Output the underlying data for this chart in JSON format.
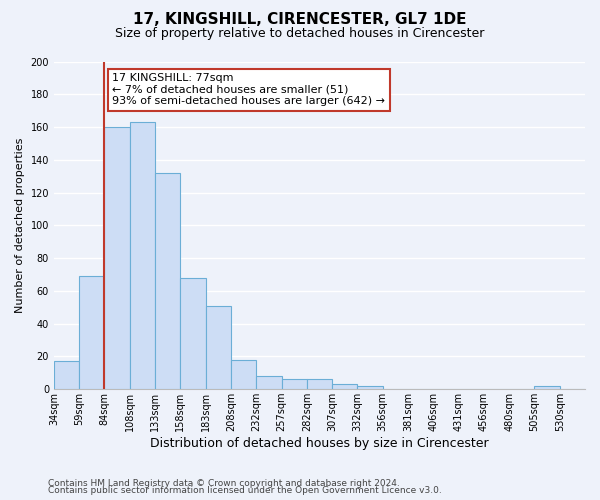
{
  "title": "17, KINGSHILL, CIRENCESTER, GL7 1DE",
  "subtitle": "Size of property relative to detached houses in Cirencester",
  "xlabel": "Distribution of detached houses by size in Cirencester",
  "ylabel": "Number of detached properties",
  "bar_values": [
    17,
    69,
    160,
    163,
    132,
    68,
    51,
    18,
    8,
    6,
    6,
    3,
    2,
    0,
    0,
    0,
    0,
    0,
    0,
    2,
    0
  ],
  "bin_edges": [
    34,
    59,
    84,
    108,
    133,
    158,
    183,
    208,
    232,
    257,
    282,
    307,
    332,
    356,
    381,
    406,
    431,
    456,
    480,
    505,
    530
  ],
  "xtick_labels": [
    "34sqm",
    "59sqm",
    "84sqm",
    "108sqm",
    "133sqm",
    "158sqm",
    "183sqm",
    "208sqm",
    "232sqm",
    "257sqm",
    "282sqm",
    "307sqm",
    "332sqm",
    "356sqm",
    "381sqm",
    "406sqm",
    "431sqm",
    "456sqm",
    "480sqm",
    "505sqm",
    "530sqm"
  ],
  "bar_color": "#cdddf5",
  "bar_edge_color": "#6baed6",
  "ylim": [
    0,
    200
  ],
  "yticks": [
    0,
    20,
    40,
    60,
    80,
    100,
    120,
    140,
    160,
    180,
    200
  ],
  "annotation_border_color": "#c0392b",
  "annotation_line1": "17 KINGSHILL: 77sqm",
  "annotation_line2": "← 7% of detached houses are smaller (51)",
  "annotation_line3": "93% of semi-detached houses are larger (642) →",
  "red_line_bin_index": 2,
  "footer_line1": "Contains HM Land Registry data © Crown copyright and database right 2024.",
  "footer_line2": "Contains public sector information licensed under the Open Government Licence v3.0.",
  "background_color": "#eef2fa",
  "grid_color": "#ffffff",
  "title_fontsize": 11,
  "subtitle_fontsize": 9,
  "xlabel_fontsize": 9,
  "ylabel_fontsize": 8,
  "tick_fontsize": 7,
  "footer_fontsize": 6.5,
  "annotation_fontsize": 8
}
